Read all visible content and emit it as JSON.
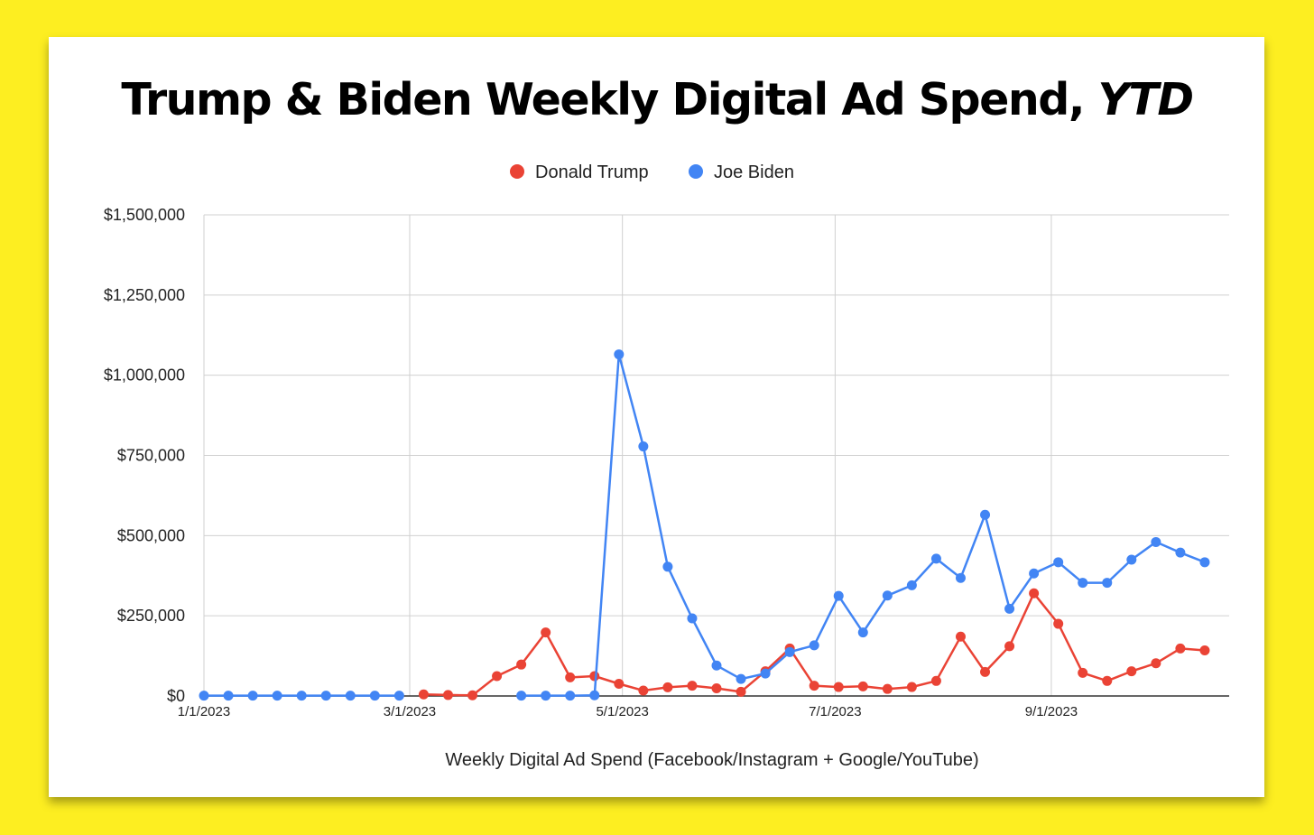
{
  "chart_data": {
    "type": "line",
    "title": "Trump & Biden Weekly Digital Ad Spend,",
    "title_italic": "YTD",
    "xlabel": "Weekly Digital Ad Spend (Facebook/Instagram + Google/YouTube)",
    "ylabel": "",
    "ylim": [
      0,
      1500000
    ],
    "yticks": [
      {
        "value": 0,
        "label": "$0"
      },
      {
        "value": 250000,
        "label": "$250,000"
      },
      {
        "value": 500000,
        "label": "$500,000"
      },
      {
        "value": 750000,
        "label": "$750,000"
      },
      {
        "value": 1000000,
        "label": "$1,000,000"
      },
      {
        "value": 1250000,
        "label": "$1,250,000"
      },
      {
        "value": 1500000,
        "label": "$1,500,000"
      }
    ],
    "xlim": [
      "2023-01-01",
      "2023-10-22"
    ],
    "xticks": [
      {
        "date": "2023-01-01",
        "label": "1/1/2023"
      },
      {
        "date": "2023-03-01",
        "label": "3/1/2023"
      },
      {
        "date": "2023-05-01",
        "label": "5/1/2023"
      },
      {
        "date": "2023-07-01",
        "label": "7/1/2023"
      },
      {
        "date": "2023-09-01",
        "label": "9/1/2023"
      }
    ],
    "grid": true,
    "legend_position": "top-center",
    "x": [
      "2023-01-01",
      "2023-01-08",
      "2023-01-15",
      "2023-01-22",
      "2023-01-29",
      "2023-02-05",
      "2023-02-12",
      "2023-02-19",
      "2023-02-26",
      "2023-03-05",
      "2023-03-12",
      "2023-03-19",
      "2023-03-26",
      "2023-04-02",
      "2023-04-09",
      "2023-04-16",
      "2023-04-23",
      "2023-04-30",
      "2023-05-07",
      "2023-05-14",
      "2023-05-21",
      "2023-05-28",
      "2023-06-04",
      "2023-06-11",
      "2023-06-18",
      "2023-06-25",
      "2023-07-02",
      "2023-07-09",
      "2023-07-16",
      "2023-07-23",
      "2023-07-30",
      "2023-08-06",
      "2023-08-13",
      "2023-08-20",
      "2023-08-27",
      "2023-09-03",
      "2023-09-10",
      "2023-09-17",
      "2023-09-24",
      "2023-10-01",
      "2023-10-08",
      "2023-10-15",
      "2023-10-22"
    ],
    "series": [
      {
        "name": "Donald Trump",
        "color": "#ea4335",
        "values": [
          null,
          null,
          null,
          null,
          null,
          null,
          null,
          null,
          null,
          5000,
          3000,
          2000,
          62000,
          98000,
          198000,
          58000,
          62000,
          38000,
          17000,
          27000,
          32000,
          24000,
          13000,
          77000,
          148000,
          32000,
          28000,
          30000,
          22000,
          28000,
          47000,
          185000,
          75000,
          155000,
          320000,
          225000,
          72000,
          47000,
          77000,
          102000,
          148000,
          142000,
          null
        ]
      },
      {
        "name": "Joe Biden",
        "color": "#4285f4",
        "values": [
          1000,
          1000,
          1000,
          1000,
          1000,
          1000,
          1000,
          1000,
          1000,
          null,
          null,
          null,
          null,
          1000,
          1000,
          1000,
          2000,
          1065000,
          778000,
          403000,
          242000,
          95000,
          53000,
          70000,
          137000,
          158000,
          312000,
          198000,
          313000,
          345000,
          428000,
          368000,
          565000,
          272000,
          382000,
          417000,
          353000,
          353000,
          425000,
          480000,
          447000,
          417000,
          null
        ]
      }
    ]
  }
}
